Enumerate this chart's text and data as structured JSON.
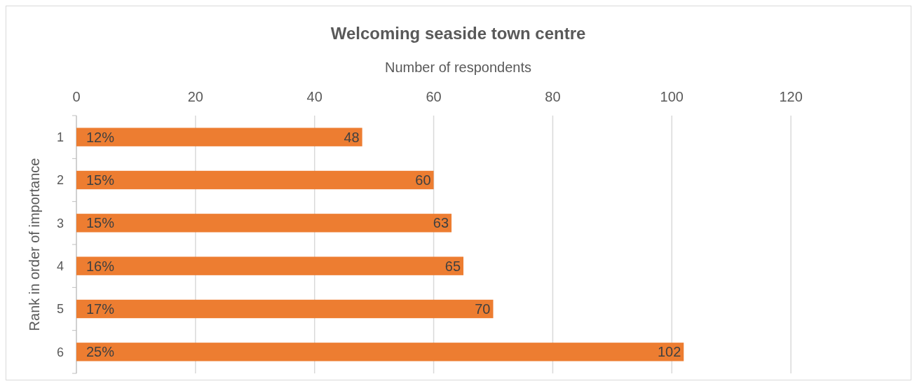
{
  "chart_data": {
    "type": "bar",
    "orientation": "horizontal",
    "title": "Welcoming seaside town centre",
    "xlabel": "Number of respondents",
    "ylabel": "Rank in order of importance",
    "categories": [
      "1",
      "2",
      "3",
      "4",
      "5",
      "6"
    ],
    "series": [
      {
        "color": "#ed7d31",
        "values": [
          48,
          60,
          63,
          65,
          70,
          102
        ],
        "value_labels": [
          "48",
          "60",
          "63",
          "65",
          "70",
          "102"
        ]
      }
    ],
    "annotations": [
      "12%",
      "15%",
      "15%",
      "16%",
      "17%",
      "25%"
    ],
    "xlim": [
      0,
      140
    ],
    "xticks": [
      0,
      20,
      40,
      60,
      80,
      100,
      120
    ],
    "grid": "x"
  }
}
